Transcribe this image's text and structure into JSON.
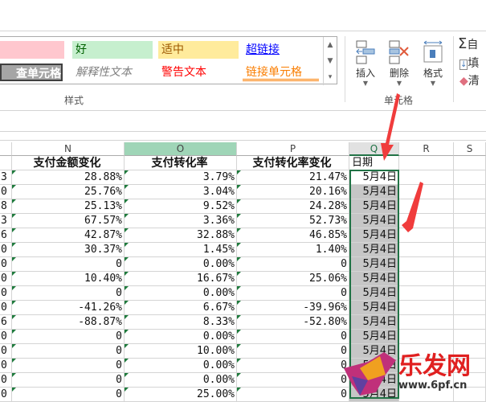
{
  "ribbon": {
    "styles": {
      "label": "样式",
      "items": [
        {
          "text": "",
          "bg": "#ffc7ce",
          "color": "#9c0006"
        },
        {
          "text": "好",
          "bg": "#c6efce",
          "color": "#006100"
        },
        {
          "text": "适中",
          "bg": "#ffeb9c",
          "color": "#9c5700"
        },
        {
          "text": "超链接",
          "bg": "#ffffff",
          "color": "#0000ff"
        },
        {
          "text": "查单元格",
          "bg": "#a5a5a5",
          "color": "#ffffff"
        },
        {
          "text": "解释性文本",
          "bg": "#ffffff",
          "color": "#7f7f7f"
        },
        {
          "text": "警告文本",
          "bg": "#ffffff",
          "color": "#ff0000"
        },
        {
          "text": "链接单元格",
          "bg": "#ffffff",
          "color": "#fa7d00"
        }
      ]
    },
    "cells": {
      "label": "单元格",
      "insert": "插入",
      "delete": "删除",
      "format": "格式"
    },
    "editing": {
      "autosum": "自",
      "fill": "填",
      "clear": "清"
    }
  },
  "sheet": {
    "columns": [
      "N",
      "O",
      "P",
      "Q",
      "R",
      "S"
    ],
    "selected_column": "Q",
    "headers": [
      "支付金额变化",
      "支付转化率",
      "支付转化率变化",
      "日期"
    ],
    "rows": [
      [
        "3",
        "28.88%",
        "3.79%",
        "21.47%",
        "5月4日"
      ],
      [
        "0",
        "25.76%",
        "3.04%",
        "20.16%",
        "5月4日"
      ],
      [
        "8",
        "25.13%",
        "9.52%",
        "24.28%",
        "5月4日"
      ],
      [
        "3",
        "67.57%",
        "3.36%",
        "52.73%",
        "5月4日"
      ],
      [
        "6",
        "42.87%",
        "32.88%",
        "46.85%",
        "5月4日"
      ],
      [
        "0",
        "30.37%",
        "1.45%",
        "1.40%",
        "5月4日"
      ],
      [
        "0",
        "0",
        "0.00%",
        "0",
        "5月4日"
      ],
      [
        "0",
        "10.40%",
        "16.67%",
        "25.06%",
        "5月4日"
      ],
      [
        "0",
        "0",
        "0.00%",
        "0",
        "5月4日"
      ],
      [
        "0",
        "-41.26%",
        "6.67%",
        "-39.96%",
        "5月4日"
      ],
      [
        "6",
        "-88.87%",
        "8.33%",
        "-52.80%",
        "5月4日"
      ],
      [
        "0",
        "0",
        "0.00%",
        "0",
        "5月4日"
      ],
      [
        "0",
        "0",
        "10.00%",
        "0",
        "5月4日"
      ],
      [
        "0",
        "0",
        "0.00%",
        "0",
        "5月4日"
      ],
      [
        "0",
        "0",
        "0.00%",
        "0",
        "5月4日"
      ],
      [
        "0",
        "0",
        "25.00%",
        "0",
        "5月4日"
      ]
    ]
  },
  "watermark": {
    "text": "乐发网",
    "url_text": "www.6pf.cn"
  },
  "colors": {
    "selection": "#217346",
    "arrow": "#f03c3c"
  }
}
